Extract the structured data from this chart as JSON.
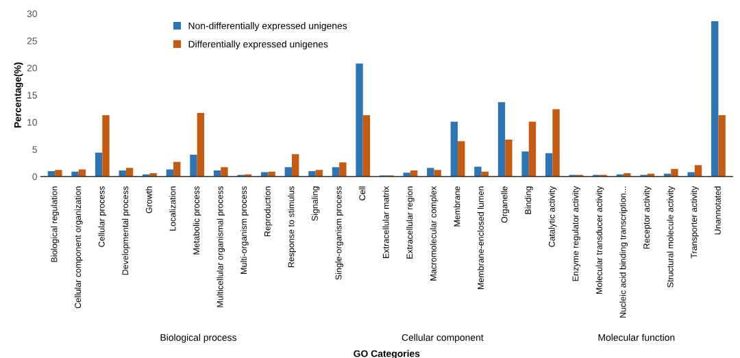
{
  "chart_data": {
    "type": "bar",
    "xlabel": "GO Categories",
    "ylabel": "Percentage(%)",
    "categories": [
      "Biological regulation",
      "Cellular component organization",
      "Cellular process",
      "Developmental process",
      "Growth",
      "Localization",
      "Metabolic process",
      "Multicellular organismal process",
      "Multi-organism process",
      "Reproduction",
      "Response to stimulus",
      "Signaling",
      "Single-organism process",
      "Cell",
      "Extracellular matrix",
      "Extracellular region",
      "Macromolecular complex",
      "Membrane",
      "Membrane-enclosed lumen",
      "Organelle",
      "Binding",
      "Catalytic activity",
      "Enzyme regulator activity",
      "Molecular transducer activity",
      "Nucleic acid binding transcription...",
      "Receptor activity",
      "Structural molecule activity",
      "Transporter activity",
      "Unannotated"
    ],
    "series": [
      {
        "name": "Non-differentially expressed unigenes",
        "color": "#2e75b6",
        "values": [
          1.0,
          0.9,
          4.4,
          1.1,
          0.4,
          1.3,
          4.0,
          1.1,
          0.3,
          0.8,
          1.7,
          1.0,
          1.7,
          20.8,
          0.2,
          0.7,
          1.6,
          10.1,
          1.8,
          13.7,
          4.6,
          4.3,
          0.3,
          0.3,
          0.4,
          0.3,
          0.5,
          0.8,
          28.6
        ]
      },
      {
        "name": "Differentially expressed unigenes",
        "color": "#c55a11",
        "values": [
          1.2,
          1.3,
          11.3,
          1.6,
          0.6,
          2.7,
          11.7,
          1.7,
          0.4,
          0.9,
          4.1,
          1.2,
          2.6,
          11.3,
          0.2,
          1.1,
          1.2,
          6.5,
          0.9,
          6.8,
          10.1,
          12.4,
          0.3,
          0.3,
          0.6,
          0.5,
          1.4,
          2.1,
          11.3
        ]
      }
    ],
    "annotations": [
      "Biological process",
      "Cellular component",
      "Molecular function"
    ],
    "ylim": [
      0,
      30
    ],
    "yticks": [
      0,
      5,
      10,
      15,
      20,
      25,
      30
    ],
    "grid": false,
    "legend": "top left"
  }
}
